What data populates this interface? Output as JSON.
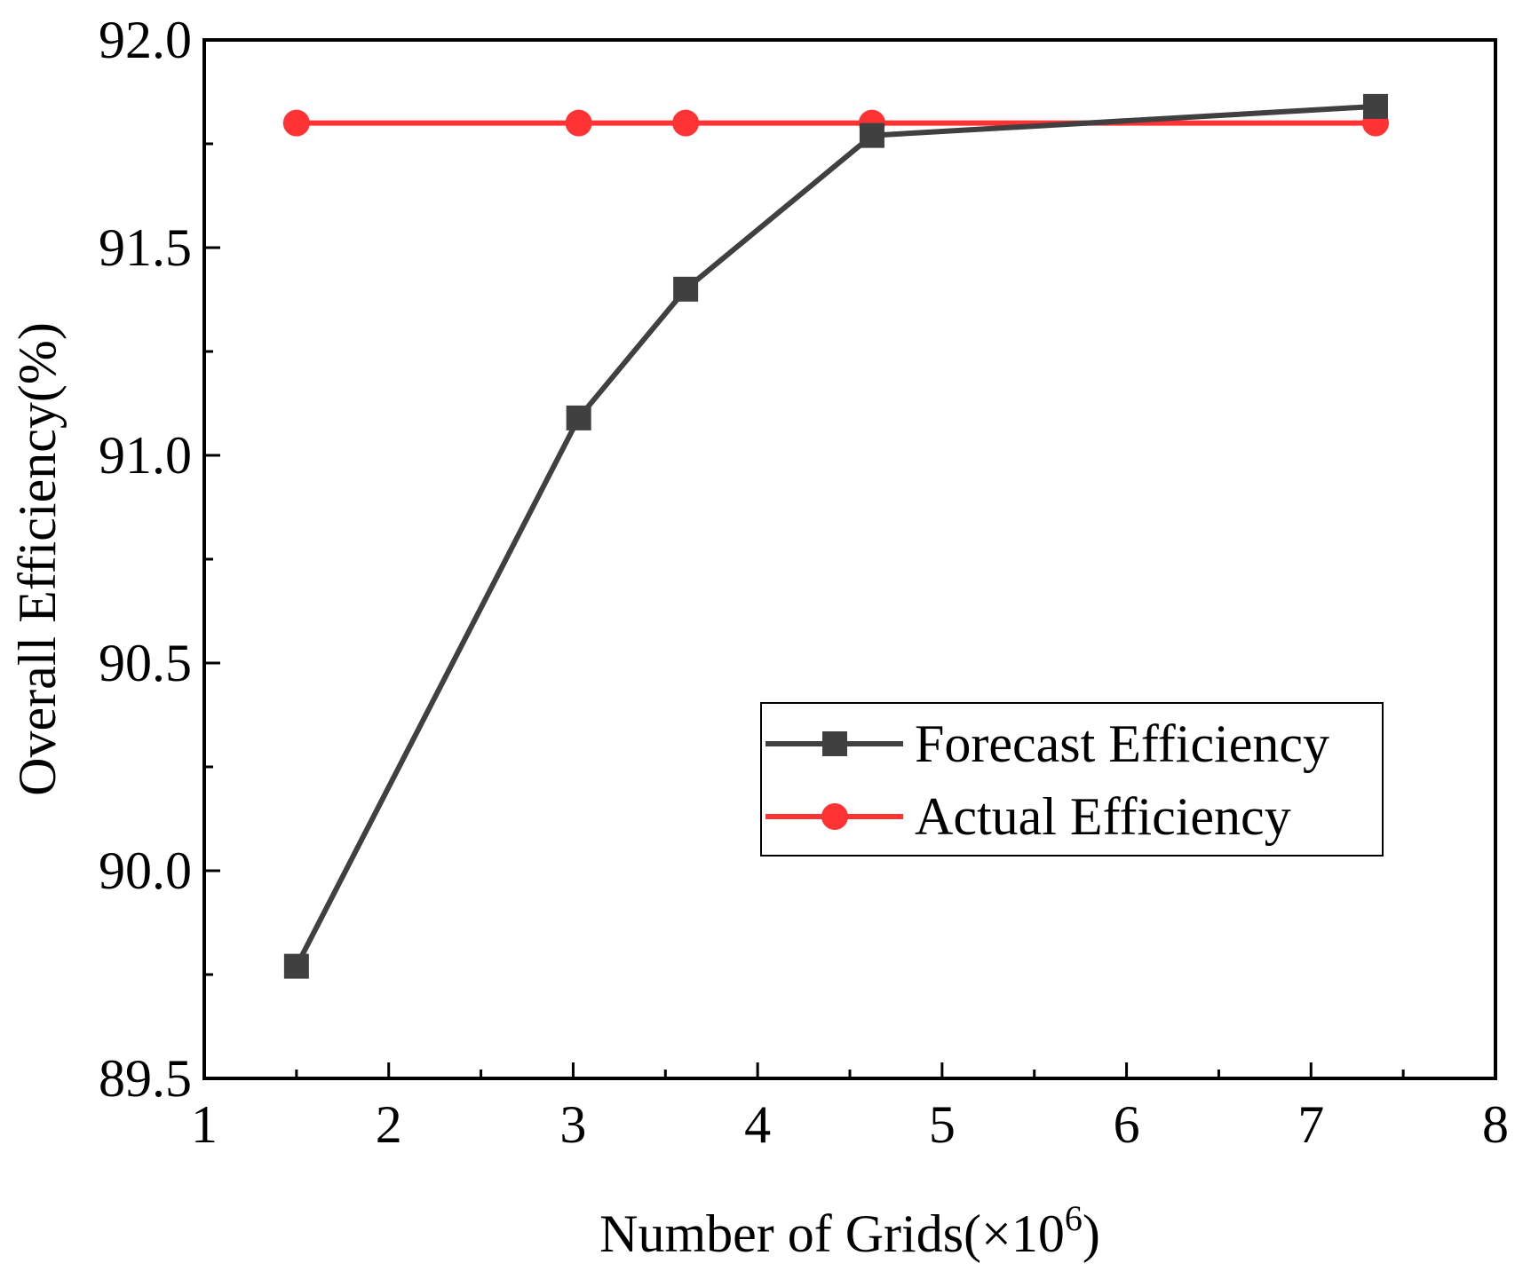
{
  "chart_data": {
    "type": "line",
    "title": "",
    "xlabel": "Number of Grids(×10",
    "xlabel_sup": "6",
    "xlabel_close": ")",
    "ylabel": "Overall Efficiency(%)",
    "xlim": [
      1,
      8
    ],
    "ylim": [
      89.5,
      92.0
    ],
    "xticks": [
      "1",
      "2",
      "3",
      "4",
      "5",
      "6",
      "7",
      "8"
    ],
    "yticks": [
      "89.5",
      "90.0",
      "90.5",
      "91.0",
      "91.5",
      "92.0"
    ],
    "grid": false,
    "legend_position": "center-right",
    "series": [
      {
        "name": "Forecast Efficiency",
        "color": "#404040",
        "marker": "square",
        "x": [
          1.5,
          3.03,
          3.61,
          4.62,
          7.35
        ],
        "y": [
          89.77,
          91.09,
          91.4,
          91.77,
          91.84
        ]
      },
      {
        "name": "Actual Efficiency",
        "color": "#ff3333",
        "marker": "circle",
        "x": [
          1.5,
          3.03,
          3.61,
          4.62,
          7.35
        ],
        "y": [
          91.8,
          91.8,
          91.8,
          91.8,
          91.8
        ]
      }
    ]
  }
}
